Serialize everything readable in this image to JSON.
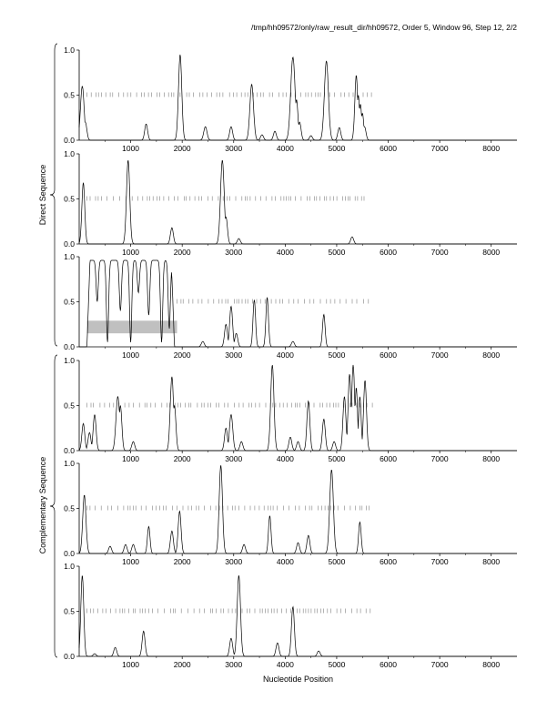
{
  "title": "/tmp/hh09572/only/raw_result_dir/hh09572, Order 5, Window 96, Step 12, 2/2",
  "chart_data": {
    "type": "line",
    "title": "/tmp/hh09572/only/raw_result_dir/hh09572, Order 5, Window 96, Step 12, 2/2",
    "xlabel": "Nucleotide Position",
    "xlim": [
      0,
      8500
    ],
    "ylim": [
      0,
      1
    ],
    "x_ticks": [
      1000,
      2000,
      3000,
      4000,
      5000,
      6000,
      7000,
      8000
    ],
    "y_ticks": [
      0.0,
      0.5,
      1.0
    ],
    "group_labels": [
      "Direct Sequence",
      "Complementary Sequence"
    ],
    "line_color": "#000000",
    "tick_color": "#808080",
    "highlight_color": "#c0c0c0",
    "panels": [
      {
        "group": "Direct Sequence",
        "peaks": [
          [
            60,
            0.6,
            50
          ],
          [
            120,
            0.2,
            40
          ],
          [
            1300,
            0.18,
            40
          ],
          [
            1960,
            0.95,
            45
          ],
          [
            2450,
            0.15,
            45
          ],
          [
            2950,
            0.15,
            40
          ],
          [
            3350,
            0.62,
            50
          ],
          [
            3550,
            0.06,
            40
          ],
          [
            3800,
            0.1,
            40
          ],
          [
            4150,
            0.92,
            60
          ],
          [
            4220,
            0.45,
            40
          ],
          [
            4280,
            0.2,
            40
          ],
          [
            4500,
            0.05,
            40
          ],
          [
            4800,
            0.88,
            55
          ],
          [
            5050,
            0.14,
            40
          ],
          [
            5380,
            0.72,
            40
          ],
          [
            5420,
            0.5,
            35
          ],
          [
            5460,
            0.4,
            35
          ],
          [
            5500,
            0.3,
            35
          ],
          [
            5540,
            0.15,
            40
          ]
        ],
        "ticks_y": 0.5,
        "ticks_range": [
          150,
          5700
        ]
      },
      {
        "group": "Direct Sequence",
        "peaks": [
          [
            80,
            0.68,
            40
          ],
          [
            950,
            0.93,
            45
          ],
          [
            1800,
            0.18,
            40
          ],
          [
            2780,
            0.93,
            50
          ],
          [
            2850,
            0.3,
            40
          ],
          [
            3100,
            0.06,
            40
          ],
          [
            5300,
            0.08,
            40
          ]
        ],
        "ticks_y": 0.5,
        "ticks_range": [
          150,
          5550
        ]
      },
      {
        "group": "Direct Sequence",
        "plateaus": [
          [
            150,
            1850,
            0.96
          ]
        ],
        "dips": [
          [
            350,
            0.5
          ],
          [
            550,
            0.05
          ],
          [
            800,
            0.4
          ],
          [
            1000,
            0.05
          ],
          [
            1150,
            0.6
          ],
          [
            1350,
            0.35
          ],
          [
            1600,
            0.05
          ],
          [
            1750,
            0.2
          ]
        ],
        "peaks": [
          [
            2400,
            0.06,
            40
          ],
          [
            2850,
            0.25,
            40
          ],
          [
            2950,
            0.45,
            40
          ],
          [
            3050,
            0.15,
            40
          ],
          [
            3400,
            0.52,
            35
          ],
          [
            3650,
            0.55,
            35
          ],
          [
            4150,
            0.06,
            40
          ],
          [
            4750,
            0.36,
            35
          ]
        ],
        "highlight": {
          "x": [
            150,
            1900
          ],
          "y": [
            0.15,
            0.29
          ]
        },
        "ticks_y": 0.5,
        "ticks_range": [
          1900,
          5700
        ]
      },
      {
        "group": "Complementary Sequence",
        "peaks": [
          [
            80,
            0.3,
            40
          ],
          [
            200,
            0.2,
            40
          ],
          [
            300,
            0.4,
            40
          ],
          [
            750,
            0.6,
            50
          ],
          [
            800,
            0.5,
            40
          ],
          [
            1050,
            0.1,
            40
          ],
          [
            1800,
            0.82,
            45
          ],
          [
            1850,
            0.5,
            40
          ],
          [
            2850,
            0.25,
            40
          ],
          [
            2950,
            0.4,
            45
          ],
          [
            3150,
            0.1,
            40
          ],
          [
            3750,
            0.95,
            45
          ],
          [
            4100,
            0.15,
            40
          ],
          [
            4250,
            0.1,
            40
          ],
          [
            4450,
            0.55,
            40
          ],
          [
            4750,
            0.35,
            40
          ],
          [
            4950,
            0.1,
            40
          ],
          [
            5150,
            0.6,
            40
          ],
          [
            5250,
            0.85,
            40
          ],
          [
            5320,
            0.95,
            40
          ],
          [
            5380,
            0.7,
            35
          ],
          [
            5450,
            0.6,
            35
          ],
          [
            5550,
            0.78,
            40
          ]
        ],
        "ticks_y": 0.5,
        "ticks_range": [
          150,
          5700
        ]
      },
      {
        "group": "Complementary Sequence",
        "peaks": [
          [
            100,
            0.65,
            45
          ],
          [
            600,
            0.08,
            40
          ],
          [
            900,
            0.1,
            40
          ],
          [
            1050,
            0.1,
            40
          ],
          [
            1350,
            0.3,
            35
          ],
          [
            1800,
            0.25,
            40
          ],
          [
            1950,
            0.47,
            40
          ],
          [
            2750,
            0.98,
            45
          ],
          [
            3200,
            0.1,
            40
          ],
          [
            3700,
            0.42,
            35
          ],
          [
            4250,
            0.12,
            40
          ],
          [
            4450,
            0.2,
            40
          ],
          [
            4900,
            0.93,
            50
          ],
          [
            5450,
            0.35,
            35
          ]
        ],
        "ticks_y": 0.5,
        "ticks_range": [
          150,
          5700
        ]
      },
      {
        "group": "Complementary Sequence",
        "peaks": [
          [
            60,
            0.9,
            40
          ],
          [
            300,
            0.03,
            40
          ],
          [
            700,
            0.1,
            40
          ],
          [
            1250,
            0.28,
            40
          ],
          [
            2950,
            0.2,
            40
          ],
          [
            3100,
            0.9,
            45
          ],
          [
            3850,
            0.15,
            40
          ],
          [
            4150,
            0.55,
            40
          ],
          [
            4650,
            0.06,
            40
          ]
        ],
        "ticks_y": 0.5,
        "ticks_range": [
          150,
          5700
        ]
      }
    ]
  }
}
